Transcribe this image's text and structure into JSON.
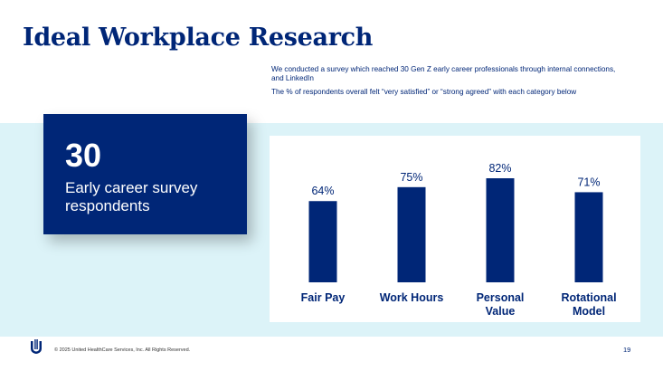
{
  "slide": {
    "title": "Ideal Workplace Research",
    "intro_line1": "We conducted a survey which reached 30 Gen Z early career professionals through internal connections, and LinkedIn",
    "intro_line2": "The % of respondents overall felt “very satisfied” or “strong agreed” with each category below"
  },
  "stat": {
    "number": "30",
    "label": "Early career survey respondents"
  },
  "chart_data": {
    "type": "bar",
    "categories": [
      "Fair Pay",
      "Work Hours",
      "Personal Value",
      "Rotational Model"
    ],
    "category_lines": [
      [
        "Fair Pay"
      ],
      [
        "Work Hours"
      ],
      [
        "Personal",
        "Value"
      ],
      [
        "Rotational",
        "Model"
      ]
    ],
    "values": [
      64,
      75,
      82,
      71
    ],
    "data_labels": [
      "64%",
      "75%",
      "82%",
      "71%"
    ],
    "title": "",
    "xlabel": "",
    "ylabel": "",
    "ylim": [
      0,
      100
    ],
    "grid": false,
    "bar_color": "#002677"
  },
  "footer": {
    "copyright": "© 2025 United HealthCare Services, Inc. All Rights Reserved.",
    "page_number": "19"
  },
  "colors": {
    "brand_navy": "#002677",
    "band_light_blue": "#dcf3f8"
  },
  "icons": {
    "footer_logo": "uhc-logo-icon"
  }
}
